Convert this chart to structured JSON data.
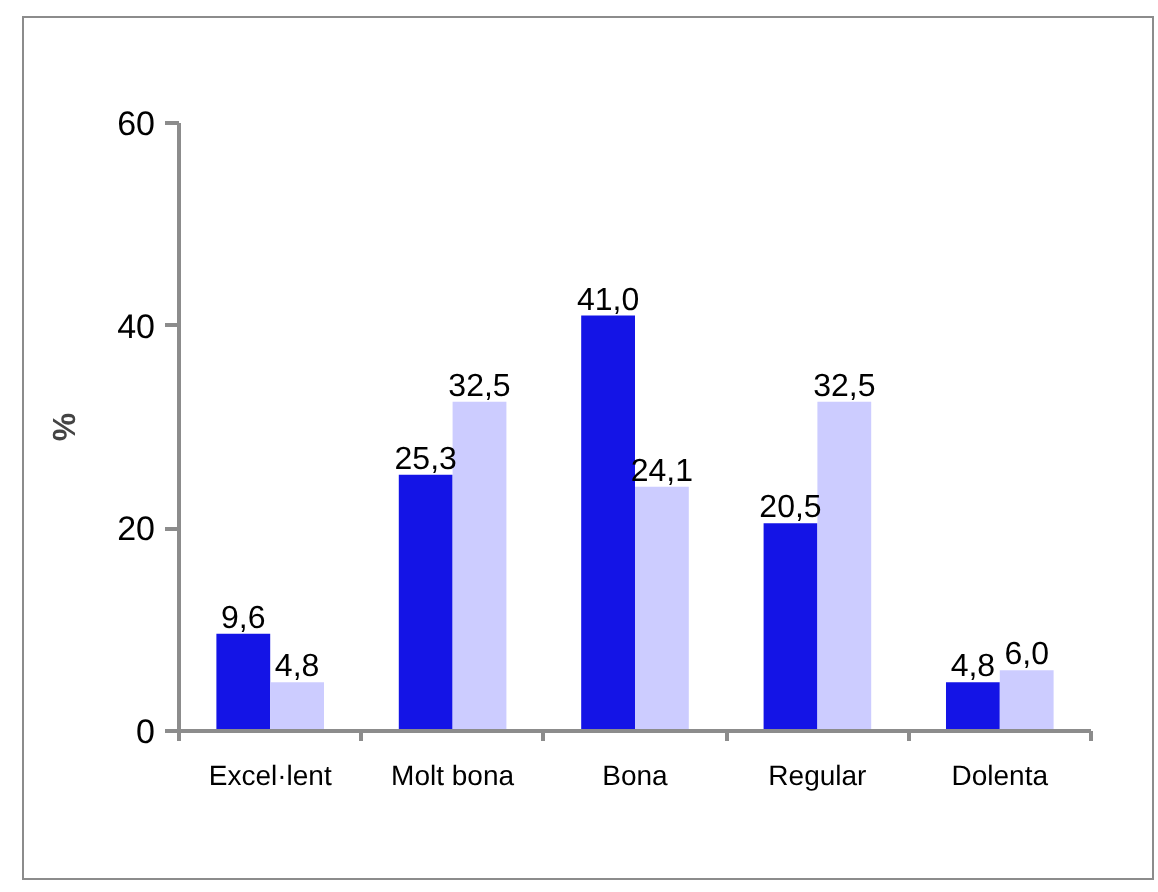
{
  "chart_data": {
    "type": "bar",
    "categories": [
      "Excel·lent",
      "Molt bona",
      "Bona",
      "Regular",
      "Dolenta"
    ],
    "ylabel": "%",
    "ylim": [
      0,
      60
    ],
    "yticks": [
      0,
      20,
      40,
      60
    ],
    "grid": false,
    "series": [
      {
        "color": "#1414e6",
        "values": [
          9.6,
          25.3,
          41.0,
          20.5,
          4.8
        ],
        "value_labels": [
          "9,6",
          "25,3",
          "41,0",
          "20,5",
          "4,8"
        ]
      },
      {
        "color": "#ccccff",
        "values": [
          4.8,
          32.5,
          24.1,
          32.5,
          6.0
        ],
        "value_labels": [
          "4,8",
          "32,5",
          "24,1",
          "32,5",
          "6,0"
        ]
      }
    ]
  }
}
